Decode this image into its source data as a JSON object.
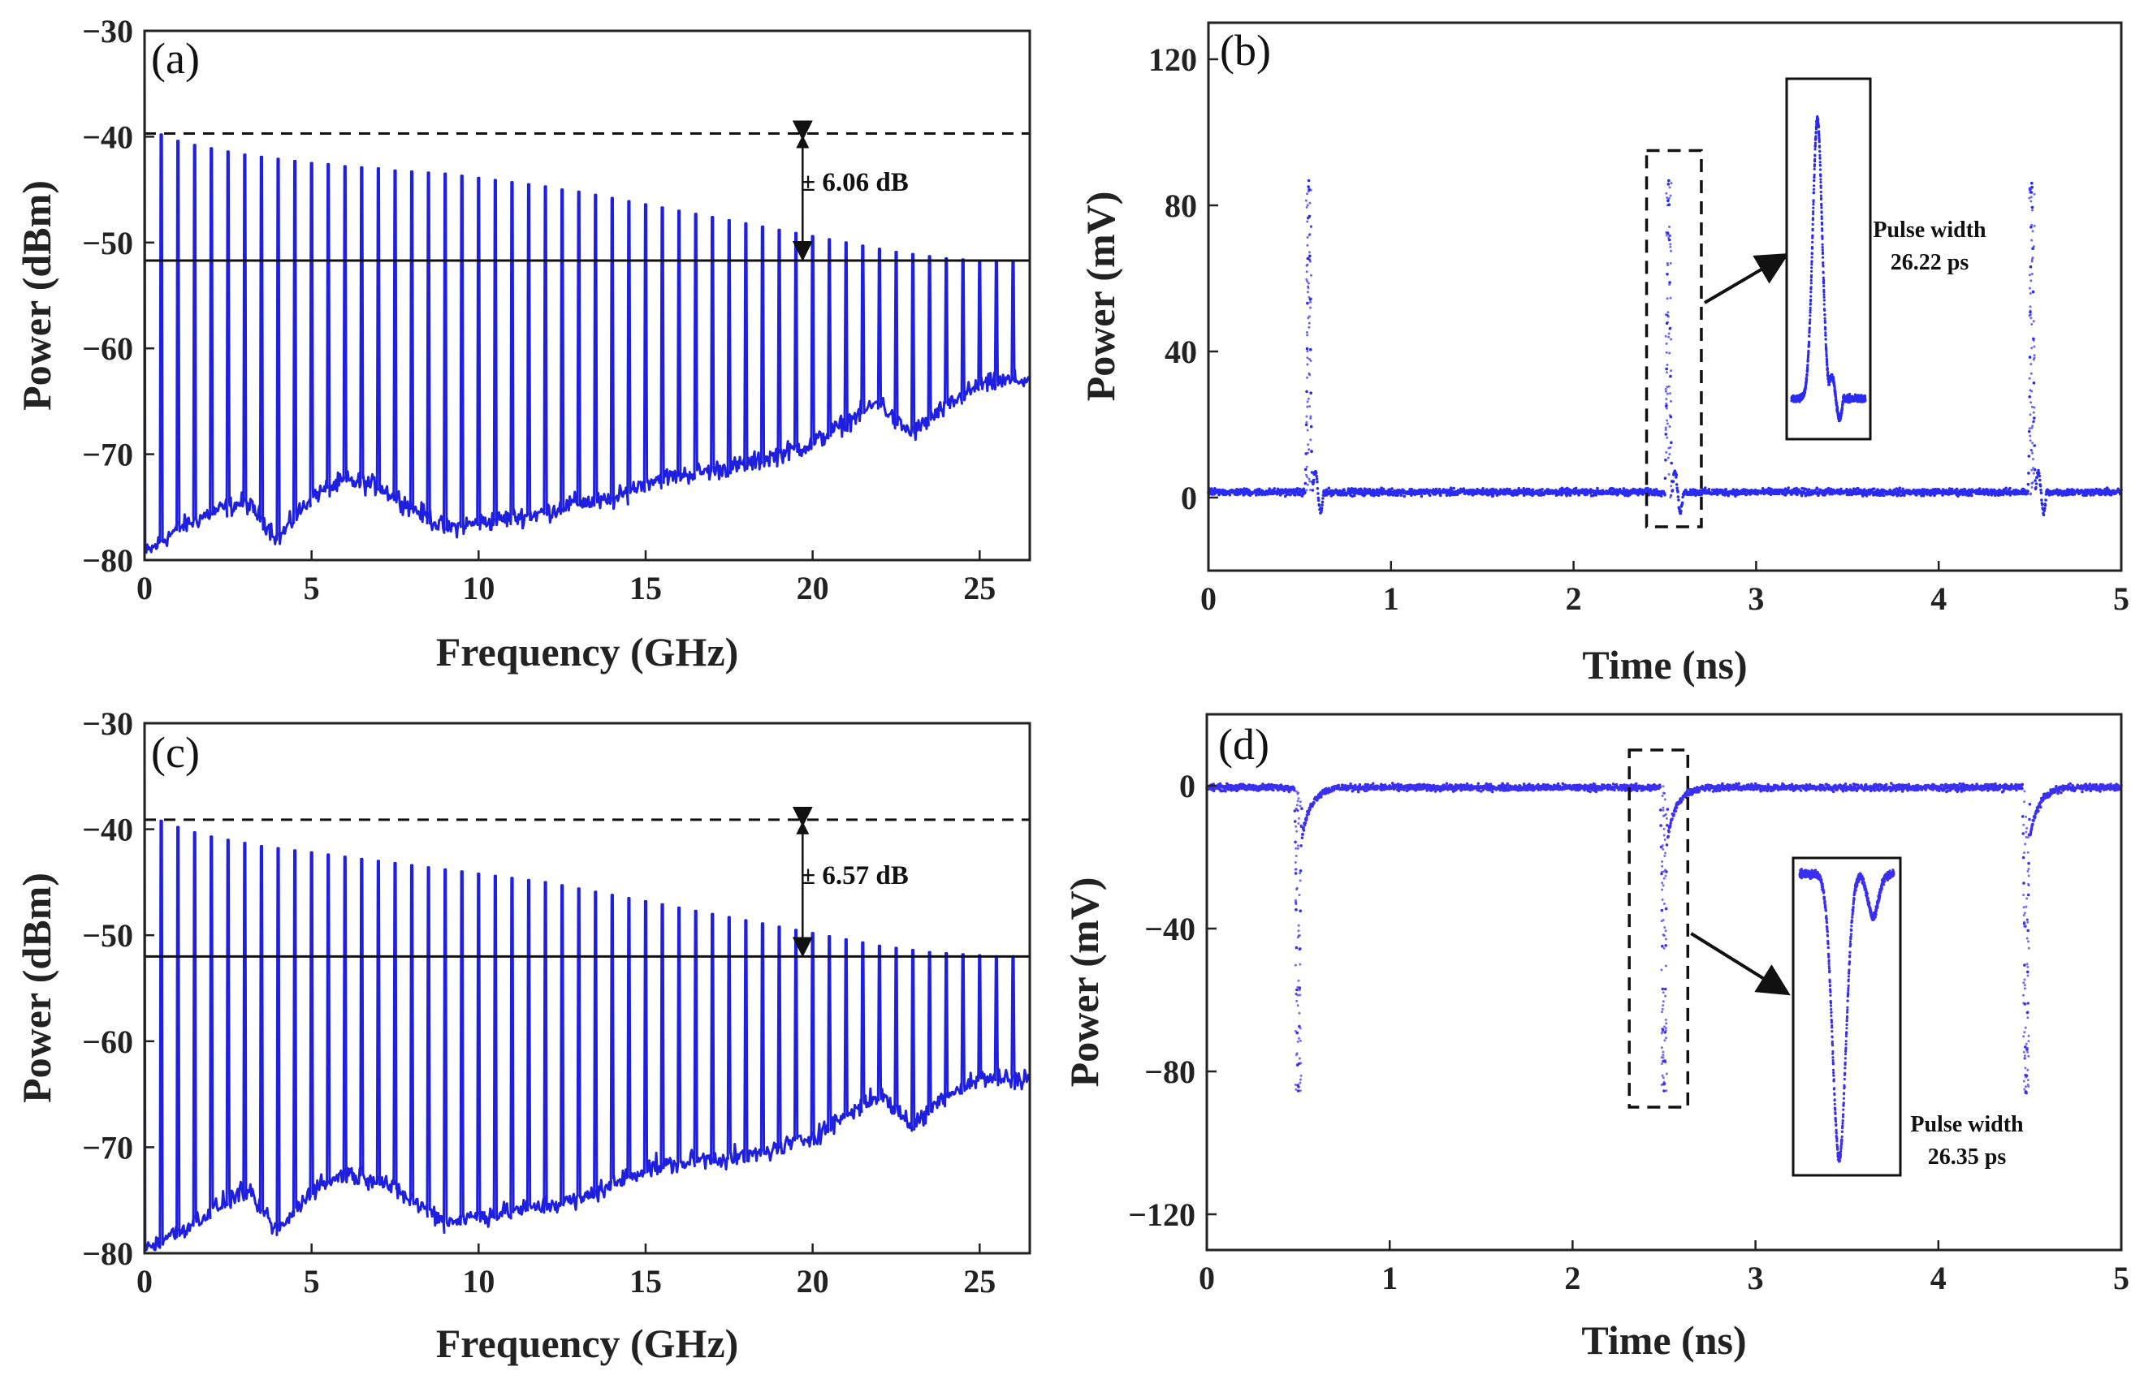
{
  "chart_data": [
    {
      "id": "a",
      "type": "line",
      "panel_label": "(a)",
      "xlabel": "Frequency (GHz)",
      "ylabel": "Power (dBm)",
      "xlim": [
        0,
        26.5
      ],
      "ylim": [
        -80,
        -30
      ],
      "xticks": [
        "0",
        "5",
        "10",
        "15",
        "20",
        "25"
      ],
      "yticks": [
        "−30",
        "−40",
        "−50",
        "−60",
        "−70",
        "−80"
      ],
      "series": [
        {
          "color": "#1f1fe0",
          "comb_spacing_ghz": 0.5,
          "peaks": [
            -39.8,
            -40.4,
            -40.8,
            -41.1,
            -41.4,
            -41.7,
            -41.9,
            -42.1,
            -42.3,
            -42.5,
            -42.6,
            -42.8,
            -42.9,
            -43.0,
            -43.2,
            -43.3,
            -43.4,
            -43.5,
            -43.7,
            -43.9,
            -44.1,
            -44.3,
            -44.5,
            -44.7,
            -45.0,
            -45.2,
            -45.5,
            -45.8,
            -46.1,
            -46.4,
            -46.7,
            -47.0,
            -47.3,
            -47.6,
            -47.9,
            -48.2,
            -48.5,
            -48.8,
            -49.1,
            -49.4,
            -49.7,
            -50.0,
            -50.3,
            -50.6,
            -50.9,
            -51.1,
            -51.3,
            -51.5,
            -51.6,
            -51.7,
            -51.8,
            -51.8,
            -51.9
          ],
          "floor": [
            [
              0,
              -79.5
            ],
            [
              1,
              -77
            ],
            [
              2,
              -75.5
            ],
            [
              3,
              -74.5
            ],
            [
              3.5,
              -76
            ],
            [
              4,
              -78
            ],
            [
              4.5,
              -76
            ],
            [
              5,
              -74
            ],
            [
              6,
              -72.5
            ],
            [
              7,
              -73
            ],
            [
              8,
              -75
            ],
            [
              9,
              -77
            ],
            [
              10,
              -76.5
            ],
            [
              11,
              -76
            ],
            [
              12,
              -75.5
            ],
            [
              13,
              -74.5
            ],
            [
              14,
              -74.5
            ],
            [
              15,
              -72.5
            ],
            [
              16,
              -72
            ],
            [
              17,
              -71.5
            ],
            [
              18,
              -71
            ],
            [
              19,
              -70
            ],
            [
              20,
              -69
            ],
            [
              21,
              -67
            ],
            [
              22,
              -65
            ],
            [
              22.5,
              -67
            ],
            [
              23,
              -68
            ],
            [
              24,
              -65.5
            ],
            [
              25,
              -63.5
            ],
            [
              26,
              -63
            ],
            [
              26.5,
              -63
            ]
          ]
        }
      ],
      "reference_lines": [
        -39.7,
        -51.7
      ],
      "annotation": "± 6.06 dB"
    },
    {
      "id": "b",
      "type": "scatter",
      "panel_label": "(b)",
      "xlabel": "Time (ns)",
      "ylabel": "Power (mV)",
      "xlim": [
        0,
        5
      ],
      "ylim": [
        -20,
        130
      ],
      "xticks": [
        "0",
        "1",
        "2",
        "3",
        "4",
        "5"
      ],
      "yticks": [
        "120",
        "80",
        "40",
        "0"
      ],
      "series": [
        {
          "color": "#2b2bf0",
          "baseline_mv": 1.5,
          "pulses": [
            {
              "t": 0.55,
              "peak": 87,
              "undershoot": -7
            },
            {
              "t": 2.52,
              "peak": 87,
              "undershoot": -7
            },
            {
              "t": 4.51,
              "peak": 87,
              "undershoot": -7
            }
          ]
        }
      ],
      "zoom_box": {
        "t0": 2.4,
        "t1": 2.7,
        "p0": -8,
        "p1": 95
      },
      "inset_label": [
        "Pulse width",
        "26.22 ps"
      ]
    },
    {
      "id": "c",
      "type": "line",
      "panel_label": "(c)",
      "xlabel": "Frequency (GHz)",
      "ylabel": "Power (dBm)",
      "xlim": [
        0,
        26.5
      ],
      "ylim": [
        -80,
        -30
      ],
      "xticks": [
        "0",
        "5",
        "10",
        "15",
        "20",
        "25"
      ],
      "yticks": [
        "−30",
        "−40",
        "−50",
        "−60",
        "−70",
        "−80"
      ],
      "series": [
        {
          "color": "#1f1fe0",
          "comb_spacing_ghz": 0.5,
          "peaks": [
            -39.2,
            -39.8,
            -40.3,
            -40.7,
            -41.0,
            -41.3,
            -41.6,
            -41.8,
            -42.0,
            -42.2,
            -42.4,
            -42.6,
            -42.8,
            -43.0,
            -43.2,
            -43.4,
            -43.6,
            -43.8,
            -44.0,
            -44.2,
            -44.4,
            -44.6,
            -44.8,
            -45.0,
            -45.3,
            -45.6,
            -45.9,
            -46.2,
            -46.5,
            -46.8,
            -47.1,
            -47.4,
            -47.7,
            -48.0,
            -48.3,
            -48.6,
            -48.9,
            -49.2,
            -49.5,
            -49.8,
            -50.1,
            -50.4,
            -50.7,
            -51.0,
            -51.2,
            -51.4,
            -51.6,
            -51.7,
            -51.8,
            -51.9,
            -52.0,
            -52.0,
            -52.0
          ],
          "floor": [
            [
              0,
              -79.5
            ],
            [
              1,
              -78
            ],
            [
              2,
              -76
            ],
            [
              3,
              -74
            ],
            [
              3.5,
              -76
            ],
            [
              4,
              -78
            ],
            [
              4.5,
              -76
            ],
            [
              5,
              -74
            ],
            [
              6,
              -72.5
            ],
            [
              7,
              -73
            ],
            [
              8,
              -75
            ],
            [
              9,
              -77
            ],
            [
              10,
              -76.5
            ],
            [
              11,
              -76
            ],
            [
              12,
              -75.5
            ],
            [
              13,
              -75
            ],
            [
              14,
              -73.5
            ],
            [
              15,
              -72
            ],
            [
              16,
              -71.5
            ],
            [
              17,
              -71
            ],
            [
              18,
              -71
            ],
            [
              19,
              -70
            ],
            [
              20,
              -69
            ],
            [
              21,
              -67
            ],
            [
              22,
              -65
            ],
            [
              22.5,
              -66.5
            ],
            [
              23,
              -68
            ],
            [
              24,
              -65
            ],
            [
              25,
              -63.5
            ],
            [
              26,
              -63.5
            ],
            [
              26.5,
              -63.5
            ]
          ]
        }
      ],
      "reference_lines": [
        -39.1,
        -52.0
      ],
      "annotation": "± 6.57 dB"
    },
    {
      "id": "d",
      "type": "scatter",
      "panel_label": "(d)",
      "xlabel": "Time (ns)",
      "ylabel": "Power (mV)",
      "xlim": [
        0,
        5
      ],
      "ylim": [
        -130,
        20
      ],
      "xticks": [
        "0",
        "1",
        "2",
        "3",
        "4",
        "5"
      ],
      "yticks": [
        "0",
        "−40",
        "−80",
        "−120"
      ],
      "series": [
        {
          "color": "#3b2ff0",
          "baseline_mv": -0.5,
          "pulses": [
            {
              "t": 0.5,
              "peak": -86,
              "overshoot": 1
            },
            {
              "t": 2.5,
              "peak": -86,
              "overshoot": 1
            },
            {
              "t": 4.48,
              "peak": -86,
              "overshoot": 1
            }
          ]
        }
      ],
      "zoom_box": {
        "t0": 2.31,
        "t1": 2.63,
        "p0": -90,
        "p1": 10
      },
      "inset_label": [
        "Pulse width",
        "26.35 ps"
      ]
    }
  ]
}
